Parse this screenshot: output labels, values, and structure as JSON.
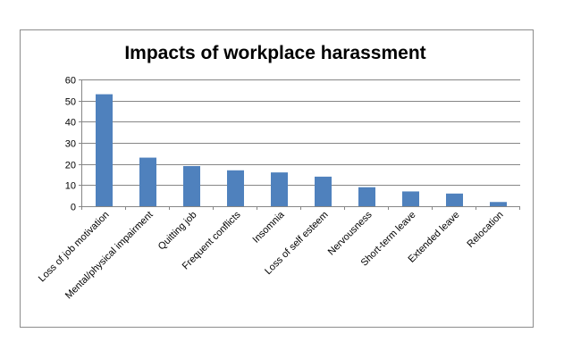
{
  "chart_data": {
    "type": "bar",
    "title": "Impacts of workplace harassment",
    "xlabel": "",
    "ylabel": "",
    "categories": [
      "Loss of job motivation",
      "Mental/physical impairment",
      "Quitting job",
      "Frequent conflicts",
      "Insomnia",
      "Loss of self esteem",
      "Nervousness",
      "Short-term leave",
      "Extended leave",
      "Relocation"
    ],
    "values": [
      53,
      23,
      19,
      17,
      16,
      14,
      9,
      7,
      6,
      2
    ],
    "ylim": [
      0,
      60
    ],
    "yticks": [
      0,
      10,
      20,
      30,
      40,
      50,
      60
    ],
    "grid": true,
    "legend": "none",
    "bar_color": "#4f81bd",
    "grid_color": "#868686"
  }
}
